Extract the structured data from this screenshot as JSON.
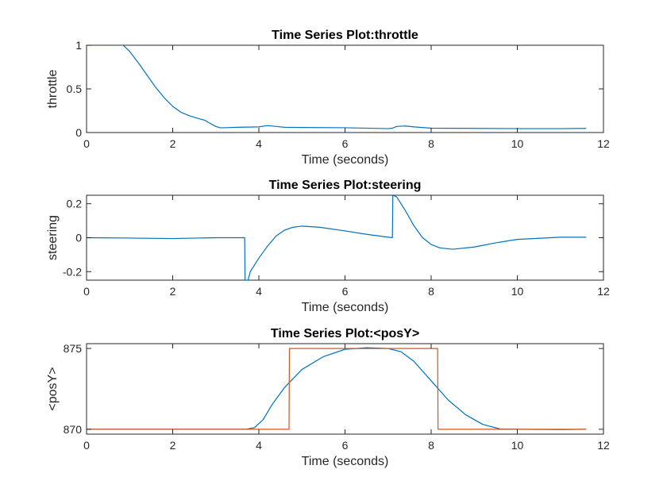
{
  "chart_data": [
    {
      "type": "line",
      "title": "Time Series Plot:throttle",
      "xlabel": "Time (seconds)",
      "ylabel": "throttle",
      "xlim": [
        0,
        12
      ],
      "ylim": [
        0,
        1
      ],
      "xticks": [
        0,
        2,
        4,
        6,
        8,
        10,
        12
      ],
      "yticks": [
        0,
        0.5,
        1
      ],
      "xtick_labels": [
        "0",
        "2",
        "4",
        "6",
        "8",
        "10",
        "12"
      ],
      "ytick_labels": [
        "0",
        "0.5",
        "1"
      ],
      "grid": false,
      "series": [
        {
          "color": "#0072BD",
          "x": [
            0,
            0.85,
            1.0,
            1.2,
            1.4,
            1.6,
            1.8,
            2.0,
            2.2,
            2.4,
            2.6,
            2.75,
            2.85,
            3.0,
            3.1,
            3.2,
            3.5,
            4.0,
            4.2,
            4.4,
            4.6,
            5.0,
            6.0,
            7.0,
            7.1,
            7.2,
            7.4,
            7.6,
            8.0,
            9.0,
            10.0,
            11.0,
            11.6
          ],
          "y": [
            1,
            1,
            0.93,
            0.8,
            0.66,
            0.52,
            0.4,
            0.3,
            0.23,
            0.19,
            0.16,
            0.14,
            0.11,
            0.07,
            0.055,
            0.055,
            0.06,
            0.065,
            0.08,
            0.07,
            0.06,
            0.058,
            0.055,
            0.045,
            0.05,
            0.07,
            0.075,
            0.065,
            0.05,
            0.048,
            0.045,
            0.045,
            0.048
          ]
        }
      ]
    },
    {
      "type": "line",
      "title": "Time Series Plot:steering",
      "xlabel": "Time (seconds)",
      "ylabel": "steering",
      "xlim": [
        0,
        12
      ],
      "ylim": [
        -0.25,
        0.25
      ],
      "xticks": [
        0,
        2,
        4,
        6,
        8,
        10,
        12
      ],
      "yticks": [
        -0.2,
        0,
        0.2
      ],
      "xtick_labels": [
        "0",
        "2",
        "4",
        "6",
        "8",
        "10",
        "12"
      ],
      "ytick_labels": [
        "-0.2",
        "0",
        "0.2"
      ],
      "grid": false,
      "series": [
        {
          "color": "#0072BD",
          "x": [
            0,
            1.0,
            2.0,
            3.0,
            3.67,
            3.68,
            3.75,
            3.8,
            4.0,
            4.2,
            4.4,
            4.6,
            4.8,
            5.0,
            5.4,
            6.0,
            6.5,
            7.1,
            7.11,
            7.2,
            7.4,
            7.6,
            7.8,
            8.0,
            8.2,
            8.5,
            9.0,
            9.5,
            10.0,
            11.0,
            11.6
          ],
          "y": [
            0,
            -0.002,
            -0.005,
            0,
            0,
            -0.25,
            -0.25,
            -0.2,
            -0.12,
            -0.05,
            0.01,
            0.045,
            0.062,
            0.068,
            0.062,
            0.04,
            0.02,
            0,
            0.25,
            0.24,
            0.16,
            0.07,
            0.0,
            -0.04,
            -0.06,
            -0.068,
            -0.055,
            -0.03,
            -0.01,
            0.003,
            0.003
          ]
        }
      ]
    },
    {
      "type": "line",
      "title": "Time Series Plot:<posY>",
      "xlabel": "Time (seconds)",
      "ylabel": "<posY>",
      "xlim": [
        0,
        12
      ],
      "ylim": [
        869.7,
        875.3
      ],
      "xticks": [
        0,
        2,
        4,
        6,
        8,
        10,
        12
      ],
      "yticks": [
        870,
        875
      ],
      "xtick_labels": [
        "0",
        "2",
        "4",
        "6",
        "8",
        "10",
        "12"
      ],
      "ytick_labels": [
        "870",
        "875"
      ],
      "grid": false,
      "series": [
        {
          "color": "#0072BD",
          "x": [
            0,
            3.7,
            3.9,
            4.1,
            4.3,
            4.6,
            5.0,
            5.5,
            6.0,
            6.5,
            7.0,
            7.3,
            7.6,
            8.0,
            8.4,
            8.8,
            9.2,
            9.6,
            10.0,
            11.0,
            11.6
          ],
          "y": [
            870,
            870,
            870.1,
            870.6,
            871.5,
            872.6,
            873.7,
            874.5,
            874.95,
            875.05,
            875.0,
            874.8,
            874.2,
            873.0,
            871.8,
            870.9,
            870.3,
            870.02,
            870,
            869.98,
            870
          ]
        },
        {
          "color": "#D95319",
          "x": [
            0,
            4.7,
            4.71,
            8.15,
            8.16,
            11.6
          ],
          "y": [
            870,
            870,
            875,
            875,
            870,
            870
          ]
        }
      ]
    }
  ]
}
